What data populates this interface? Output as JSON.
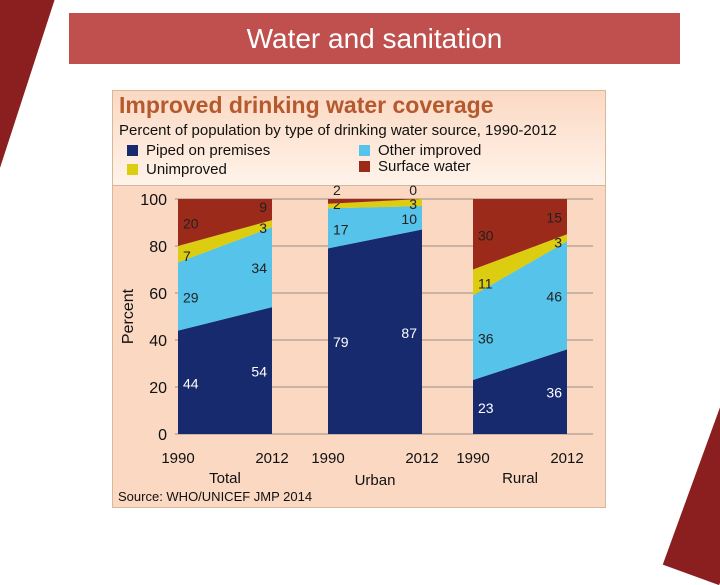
{
  "slide_title": "Water and sanitation",
  "chart_data": {
    "type": "area",
    "title": "Improved drinking water coverage",
    "subtitle": "Percent of population by type of drinking water source, 1990-2012",
    "ylabel": "Percent",
    "ylim": [
      0,
      100
    ],
    "yticks": [
      0,
      20,
      40,
      60,
      80,
      100
    ],
    "grid": true,
    "legend_position": "top",
    "stacked": true,
    "series": [
      {
        "name": "Piped on premises",
        "color": "#172a6e"
      },
      {
        "name": "Other improved",
        "color": "#55c3ea"
      },
      {
        "name": "Unimproved",
        "color": "#dccd10"
      },
      {
        "name": "Surface water",
        "color": "#9b2a1a"
      }
    ],
    "groups": [
      {
        "label": "Total",
        "x": [
          "1990",
          "2012"
        ],
        "values": {
          "1990": [
            44,
            29,
            7,
            20
          ],
          "2012": [
            54,
            34,
            3,
            9
          ]
        }
      },
      {
        "label": "Urban",
        "x": [
          "1990",
          "2012"
        ],
        "values": {
          "1990": [
            79,
            17,
            2,
            2
          ],
          "2012": [
            87,
            10,
            3,
            0
          ]
        }
      },
      {
        "label": "Rural",
        "x": [
          "1990",
          "2012"
        ],
        "values": {
          "1990": [
            23,
            36,
            11,
            30
          ],
          "2012": [
            36,
            46,
            3,
            15
          ]
        }
      }
    ],
    "source": "Source:  WHO/UNICEF JMP 2014"
  }
}
